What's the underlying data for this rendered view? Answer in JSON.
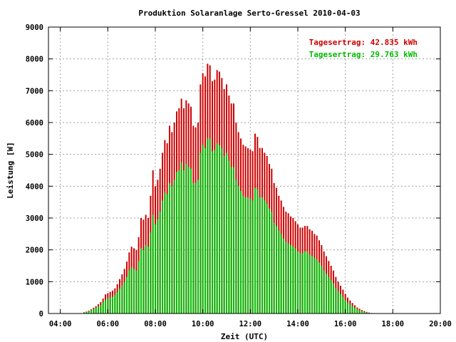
{
  "chart_data": {
    "type": "bar",
    "title": "Produktion Solaranlage Serto-Gressel 2010-04-03",
    "xlabel": "Zeit (UTC)",
    "ylabel": "Leistung [W]",
    "xlim": [
      3.5,
      20.0
    ],
    "ylim": [
      0,
      9000
    ],
    "x_tick_labels": [
      "04:00",
      "06:00",
      "08:00",
      "10:00",
      "12:00",
      "14:00",
      "16:00",
      "18:00",
      "20:00"
    ],
    "x_tick_values": [
      4,
      6,
      8,
      10,
      12,
      14,
      16,
      18,
      20
    ],
    "y_ticks": [
      0,
      1000,
      2000,
      3000,
      4000,
      5000,
      6000,
      7000,
      8000,
      9000
    ],
    "grid": true,
    "legend_position": "top-right",
    "series": [
      {
        "name": "Tagesertrag: 42.835 kWh",
        "color": "#cc0000",
        "x": [
          5.0,
          5.1,
          5.2,
          5.3,
          5.4,
          5.5,
          5.6,
          5.7,
          5.8,
          5.9,
          6.0,
          6.1,
          6.2,
          6.3,
          6.4,
          6.5,
          6.6,
          6.7,
          6.8,
          6.9,
          7.0,
          7.1,
          7.2,
          7.3,
          7.4,
          7.5,
          7.6,
          7.7,
          7.8,
          7.9,
          8.0,
          8.1,
          8.2,
          8.3,
          8.4,
          8.5,
          8.6,
          8.7,
          8.8,
          8.9,
          9.0,
          9.1,
          9.2,
          9.3,
          9.4,
          9.5,
          9.6,
          9.7,
          9.8,
          9.9,
          10.0,
          10.1,
          10.2,
          10.3,
          10.4,
          10.5,
          10.6,
          10.7,
          10.8,
          10.9,
          11.0,
          11.1,
          11.2,
          11.3,
          11.4,
          11.5,
          11.6,
          11.7,
          11.8,
          11.9,
          12.0,
          12.1,
          12.2,
          12.3,
          12.4,
          12.5,
          12.6,
          12.7,
          12.8,
          12.9,
          13.0,
          13.1,
          13.2,
          13.3,
          13.4,
          13.5,
          13.6,
          13.7,
          13.8,
          13.9,
          14.0,
          14.1,
          14.2,
          14.3,
          14.4,
          14.5,
          14.6,
          14.7,
          14.8,
          14.9,
          15.0,
          15.1,
          15.2,
          15.3,
          15.4,
          15.5,
          15.6,
          15.7,
          15.8,
          15.9,
          16.0,
          16.1,
          16.2,
          16.3,
          16.4,
          16.5,
          16.6,
          16.7,
          16.8,
          16.9,
          17.0,
          17.1,
          17.2,
          17.3,
          17.4
        ],
        "values": [
          40,
          60,
          90,
          130,
          180,
          230,
          290,
          360,
          470,
          600,
          640,
          680,
          720,
          790,
          920,
          1080,
          1230,
          1400,
          1630,
          1920,
          2100,
          2050,
          2000,
          2400,
          3000,
          2950,
          3100,
          3000,
          3700,
          4500,
          4000,
          4200,
          4550,
          5050,
          5450,
          5350,
          5900,
          5700,
          6000,
          6350,
          6450,
          6750,
          6450,
          6700,
          6600,
          6500,
          5900,
          5850,
          6000,
          7200,
          7550,
          7450,
          7850,
          7800,
          7300,
          7350,
          7650,
          7600,
          7400,
          7050,
          7200,
          6850,
          6600,
          6600,
          6000,
          5700,
          5500,
          5300,
          5250,
          5200,
          5150,
          5100,
          5650,
          5550,
          5200,
          5200,
          5050,
          4950,
          4700,
          4550,
          4100,
          3950,
          3700,
          3550,
          3350,
          3200,
          3150,
          3050,
          3000,
          2900,
          2800,
          2700,
          2700,
          2750,
          2750,
          2650,
          2600,
          2500,
          2450,
          2300,
          2150,
          1950,
          1800,
          1650,
          1500,
          1350,
          1150,
          1000,
          870,
          750,
          620,
          500,
          410,
          330,
          260,
          190,
          150,
          110,
          80,
          50,
          30,
          15,
          8,
          4,
          2
        ]
      },
      {
        "name": "Tagesertrag: 29.763 kWh",
        "color": "#00bb00",
        "x": [
          5.0,
          5.1,
          5.2,
          5.3,
          5.4,
          5.5,
          5.6,
          5.7,
          5.8,
          5.9,
          6.0,
          6.1,
          6.2,
          6.3,
          6.4,
          6.5,
          6.6,
          6.7,
          6.8,
          6.9,
          7.0,
          7.1,
          7.2,
          7.3,
          7.4,
          7.5,
          7.6,
          7.7,
          7.8,
          7.9,
          8.0,
          8.1,
          8.2,
          8.3,
          8.4,
          8.5,
          8.6,
          8.7,
          8.8,
          8.9,
          9.0,
          9.1,
          9.2,
          9.3,
          9.4,
          9.5,
          9.6,
          9.7,
          9.8,
          9.9,
          10.0,
          10.1,
          10.2,
          10.3,
          10.4,
          10.5,
          10.6,
          10.7,
          10.8,
          10.9,
          11.0,
          11.1,
          11.2,
          11.3,
          11.4,
          11.5,
          11.6,
          11.7,
          11.8,
          11.9,
          12.0,
          12.1,
          12.2,
          12.3,
          12.4,
          12.5,
          12.6,
          12.7,
          12.8,
          12.9,
          13.0,
          13.1,
          13.2,
          13.3,
          13.4,
          13.5,
          13.6,
          13.7,
          13.8,
          13.9,
          14.0,
          14.1,
          14.2,
          14.3,
          14.4,
          14.5,
          14.6,
          14.7,
          14.8,
          14.9,
          15.0,
          15.1,
          15.2,
          15.3,
          15.4,
          15.5,
          15.6,
          15.7,
          15.8,
          15.9,
          16.0,
          16.1,
          16.2,
          16.3,
          16.4,
          16.5,
          16.6,
          16.7,
          16.8,
          16.9,
          17.0,
          17.1,
          17.2,
          17.3,
          17.4
        ],
        "values": [
          30,
          45,
          70,
          100,
          140,
          180,
          220,
          270,
          350,
          430,
          470,
          500,
          530,
          580,
          670,
          780,
          880,
          1000,
          1150,
          1350,
          1450,
          1400,
          1350,
          1650,
          2050,
          2000,
          2150,
          2100,
          2550,
          3100,
          2800,
          2950,
          3200,
          3550,
          3800,
          3750,
          4100,
          4000,
          4200,
          4450,
          4500,
          4750,
          4500,
          4700,
          4600,
          4550,
          4100,
          4100,
          4200,
          5050,
          5300,
          5200,
          5500,
          5500,
          5100,
          5150,
          5350,
          5300,
          5200,
          4950,
          5050,
          4800,
          4600,
          4600,
          4200,
          4000,
          3850,
          3700,
          3650,
          3650,
          3600,
          3550,
          3950,
          3900,
          3650,
          3650,
          3550,
          3450,
          3300,
          3200,
          2850,
          2750,
          2600,
          2500,
          2350,
          2250,
          2200,
          2150,
          2100,
          2050,
          1950,
          1900,
          1900,
          1950,
          1950,
          1850,
          1800,
          1750,
          1700,
          1600,
          1500,
          1350,
          1250,
          1150,
          1050,
          950,
          800,
          700,
          610,
          530,
          430,
          350,
          290,
          230,
          180,
          130,
          100,
          75,
          55,
          35,
          20,
          10,
          5,
          3,
          1
        ]
      }
    ]
  }
}
